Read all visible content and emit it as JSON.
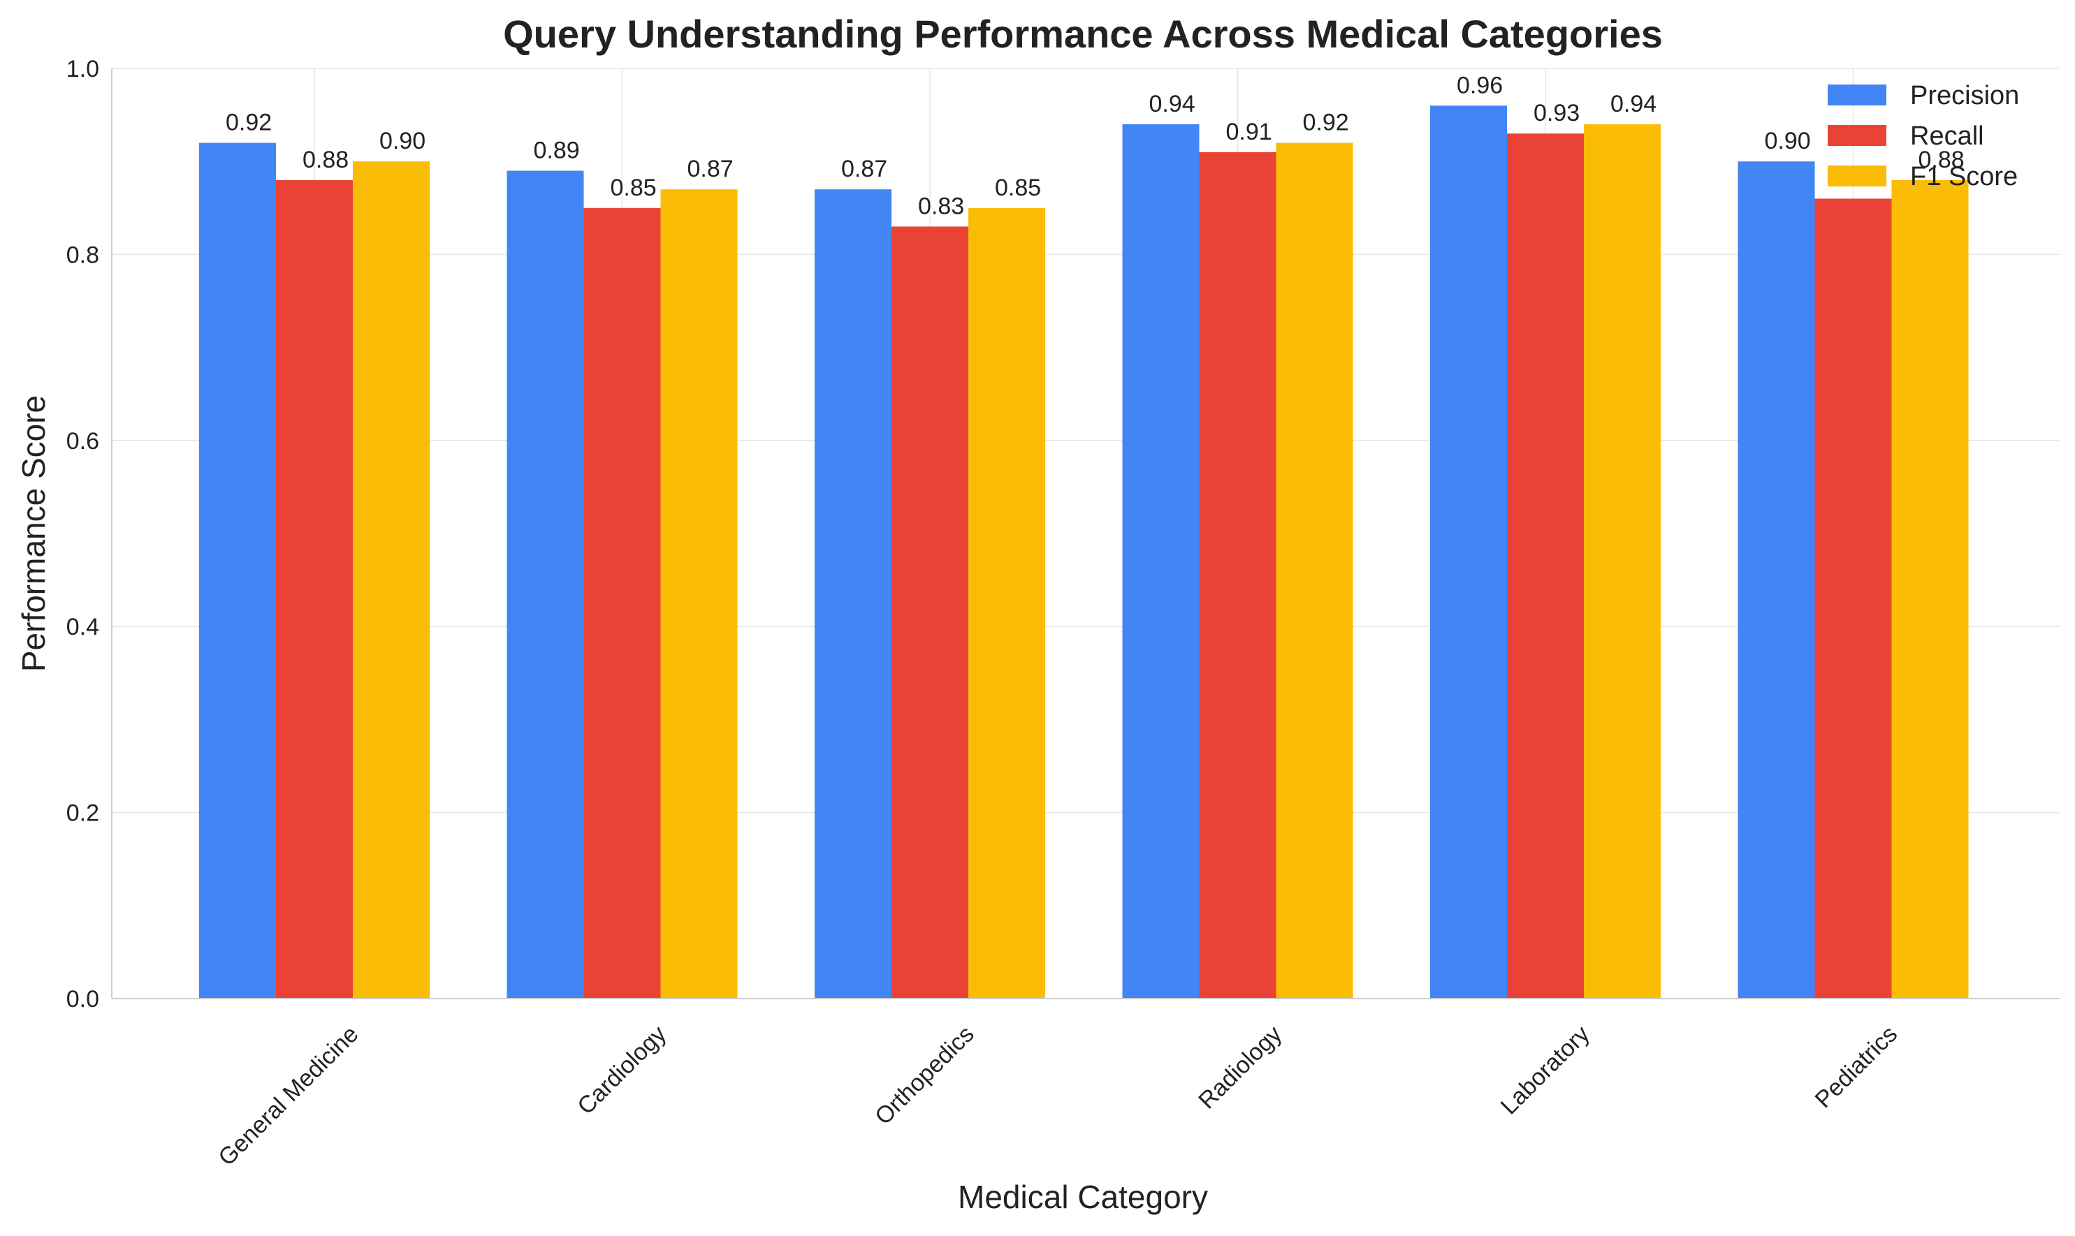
{
  "chart_data": {
    "type": "bar",
    "title": "Query Understanding Performance Across Medical Categories",
    "xlabel": "Medical Category",
    "ylabel": "Performance Score",
    "categories": [
      "General Medicine",
      "Cardiology",
      "Orthopedics",
      "Radiology",
      "Laboratory",
      "Pediatrics"
    ],
    "series": [
      {
        "name": "Precision",
        "color": "#4285F4",
        "values": [
          0.92,
          0.89,
          0.87,
          0.94,
          0.96,
          0.9
        ]
      },
      {
        "name": "Recall",
        "color": "#EA4335",
        "values": [
          0.88,
          0.85,
          0.83,
          0.91,
          0.93,
          0.86
        ]
      },
      {
        "name": "F1 Score",
        "color": "#FBBC05",
        "values": [
          0.9,
          0.87,
          0.85,
          0.92,
          0.94,
          0.88
        ]
      }
    ],
    "ylim": [
      0,
      1.0
    ],
    "yticks": [
      "0.0",
      "0.2",
      "0.4",
      "0.6",
      "0.8",
      "1.0"
    ],
    "grid": true,
    "legend_position": "top-right",
    "data_label_decimals": 2
  }
}
